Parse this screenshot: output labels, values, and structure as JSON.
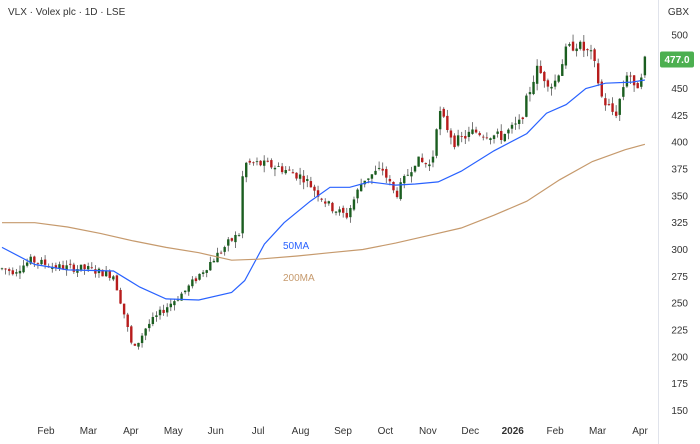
{
  "header": {
    "title": "VLX · Volex plc · 1D · LSE",
    "currency": "GBX"
  },
  "chart_data": {
    "type": "candlestick",
    "x_ticks": [
      "Feb",
      "Mar",
      "Apr",
      "May",
      "Jun",
      "Jul",
      "Aug",
      "Sep",
      "Oct",
      "Nov",
      "Dec",
      "2026",
      "Feb",
      "Mar",
      "Apr"
    ],
    "y_ticks": [
      500,
      475,
      450,
      425,
      400,
      375,
      350,
      325,
      300,
      275,
      250,
      225,
      200,
      175,
      150
    ],
    "ylim": [
      143,
      512
    ],
    "last_price": "477.0",
    "price_path": [
      {
        "t": 0,
        "v": 282
      },
      {
        "t": 0.018,
        "v": 280
      },
      {
        "t": 0.045,
        "v": 290
      },
      {
        "t": 0.08,
        "v": 284
      },
      {
        "t": 0.13,
        "v": 282
      },
      {
        "t": 0.17,
        "v": 276
      },
      {
        "t": 0.185,
        "v": 243
      },
      {
        "t": 0.2,
        "v": 205
      },
      {
        "t": 0.22,
        "v": 228
      },
      {
        "t": 0.25,
        "v": 246
      },
      {
        "t": 0.28,
        "v": 262
      },
      {
        "t": 0.31,
        "v": 283
      },
      {
        "t": 0.345,
        "v": 306
      },
      {
        "t": 0.362,
        "v": 315
      },
      {
        "t": 0.368,
        "v": 380
      },
      {
        "t": 0.39,
        "v": 380
      },
      {
        "t": 0.42,
        "v": 377
      },
      {
        "t": 0.46,
        "v": 367
      },
      {
        "t": 0.5,
        "v": 340
      },
      {
        "t": 0.525,
        "v": 331
      },
      {
        "t": 0.55,
        "v": 365
      },
      {
        "t": 0.58,
        "v": 375
      },
      {
        "t": 0.6,
        "v": 350
      },
      {
        "t": 0.63,
        "v": 383
      },
      {
        "t": 0.655,
        "v": 378
      },
      {
        "t": 0.665,
        "v": 430
      },
      {
        "t": 0.69,
        "v": 400
      },
      {
        "t": 0.72,
        "v": 410
      },
      {
        "t": 0.76,
        "v": 405
      },
      {
        "t": 0.79,
        "v": 418
      },
      {
        "t": 0.8,
        "v": 440
      },
      {
        "t": 0.815,
        "v": 468
      },
      {
        "t": 0.84,
        "v": 452
      },
      {
        "t": 0.86,
        "v": 485
      },
      {
        "t": 0.875,
        "v": 492
      },
      {
        "t": 0.9,
        "v": 480
      },
      {
        "t": 0.915,
        "v": 440
      },
      {
        "t": 0.935,
        "v": 425
      },
      {
        "t": 0.955,
        "v": 470
      },
      {
        "t": 0.965,
        "v": 445
      },
      {
        "t": 0.98,
        "v": 477
      }
    ],
    "series": [
      {
        "name": "50MA",
        "color": "#2962ff",
        "points": [
          {
            "t": 0,
            "v": 302
          },
          {
            "t": 0.05,
            "v": 286
          },
          {
            "t": 0.1,
            "v": 281
          },
          {
            "t": 0.17,
            "v": 280
          },
          {
            "t": 0.21,
            "v": 265
          },
          {
            "t": 0.25,
            "v": 254
          },
          {
            "t": 0.3,
            "v": 253
          },
          {
            "t": 0.35,
            "v": 260
          },
          {
            "t": 0.37,
            "v": 271
          },
          {
            "t": 0.4,
            "v": 305
          },
          {
            "t": 0.43,
            "v": 325
          },
          {
            "t": 0.47,
            "v": 345
          },
          {
            "t": 0.5,
            "v": 358
          },
          {
            "t": 0.53,
            "v": 358
          },
          {
            "t": 0.56,
            "v": 363
          },
          {
            "t": 0.6,
            "v": 360
          },
          {
            "t": 0.63,
            "v": 361
          },
          {
            "t": 0.665,
            "v": 363
          },
          {
            "t": 0.7,
            "v": 373
          },
          {
            "t": 0.75,
            "v": 392
          },
          {
            "t": 0.8,
            "v": 408
          },
          {
            "t": 0.83,
            "v": 427
          },
          {
            "t": 0.86,
            "v": 435
          },
          {
            "t": 0.89,
            "v": 450
          },
          {
            "t": 0.92,
            "v": 455
          },
          {
            "t": 0.96,
            "v": 456
          },
          {
            "t": 0.98,
            "v": 458
          }
        ]
      },
      {
        "name": "200MA",
        "color": "#c69a6d",
        "points": [
          {
            "t": 0,
            "v": 325
          },
          {
            "t": 0.05,
            "v": 325
          },
          {
            "t": 0.1,
            "v": 321
          },
          {
            "t": 0.15,
            "v": 315
          },
          {
            "t": 0.2,
            "v": 308
          },
          {
            "t": 0.25,
            "v": 302
          },
          {
            "t": 0.3,
            "v": 297
          },
          {
            "t": 0.35,
            "v": 290
          },
          {
            "t": 0.39,
            "v": 291
          },
          {
            "t": 0.45,
            "v": 294
          },
          {
            "t": 0.5,
            "v": 297
          },
          {
            "t": 0.55,
            "v": 300
          },
          {
            "t": 0.6,
            "v": 306
          },
          {
            "t": 0.65,
            "v": 313
          },
          {
            "t": 0.7,
            "v": 320
          },
          {
            "t": 0.75,
            "v": 332
          },
          {
            "t": 0.8,
            "v": 345
          },
          {
            "t": 0.85,
            "v": 365
          },
          {
            "t": 0.9,
            "v": 382
          },
          {
            "t": 0.95,
            "v": 393
          },
          {
            "t": 0.98,
            "v": 398
          }
        ]
      }
    ],
    "colors": {
      "up": "#1b5e20",
      "down": "#b71c1c",
      "last_badge": "#4caf50",
      "axis_text": "#333333"
    }
  }
}
